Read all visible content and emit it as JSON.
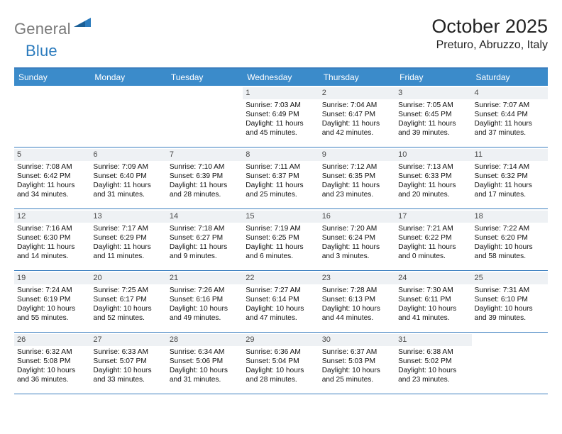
{
  "logo": {
    "part1": "General",
    "part2": "Blue"
  },
  "title": "October 2025",
  "location": "Preturo, Abruzzo, Italy",
  "colors": {
    "header_bg": "#3b8bca",
    "header_border": "#3b7fbf",
    "daynum_bg": "#eef1f4",
    "logo_gray": "#7a7a7a",
    "logo_blue": "#2b7bbd"
  },
  "daysOfWeek": [
    "Sunday",
    "Monday",
    "Tuesday",
    "Wednesday",
    "Thursday",
    "Friday",
    "Saturday"
  ],
  "weeks": [
    [
      {
        "n": "",
        "sunrise": "",
        "sunset": "",
        "daylight": ""
      },
      {
        "n": "",
        "sunrise": "",
        "sunset": "",
        "daylight": ""
      },
      {
        "n": "",
        "sunrise": "",
        "sunset": "",
        "daylight": ""
      },
      {
        "n": "1",
        "sunrise": "7:03 AM",
        "sunset": "6:49 PM",
        "daylight": "11 hours and 45 minutes."
      },
      {
        "n": "2",
        "sunrise": "7:04 AM",
        "sunset": "6:47 PM",
        "daylight": "11 hours and 42 minutes."
      },
      {
        "n": "3",
        "sunrise": "7:05 AM",
        "sunset": "6:45 PM",
        "daylight": "11 hours and 39 minutes."
      },
      {
        "n": "4",
        "sunrise": "7:07 AM",
        "sunset": "6:44 PM",
        "daylight": "11 hours and 37 minutes."
      }
    ],
    [
      {
        "n": "5",
        "sunrise": "7:08 AM",
        "sunset": "6:42 PM",
        "daylight": "11 hours and 34 minutes."
      },
      {
        "n": "6",
        "sunrise": "7:09 AM",
        "sunset": "6:40 PM",
        "daylight": "11 hours and 31 minutes."
      },
      {
        "n": "7",
        "sunrise": "7:10 AM",
        "sunset": "6:39 PM",
        "daylight": "11 hours and 28 minutes."
      },
      {
        "n": "8",
        "sunrise": "7:11 AM",
        "sunset": "6:37 PM",
        "daylight": "11 hours and 25 minutes."
      },
      {
        "n": "9",
        "sunrise": "7:12 AM",
        "sunset": "6:35 PM",
        "daylight": "11 hours and 23 minutes."
      },
      {
        "n": "10",
        "sunrise": "7:13 AM",
        "sunset": "6:33 PM",
        "daylight": "11 hours and 20 minutes."
      },
      {
        "n": "11",
        "sunrise": "7:14 AM",
        "sunset": "6:32 PM",
        "daylight": "11 hours and 17 minutes."
      }
    ],
    [
      {
        "n": "12",
        "sunrise": "7:16 AM",
        "sunset": "6:30 PM",
        "daylight": "11 hours and 14 minutes."
      },
      {
        "n": "13",
        "sunrise": "7:17 AM",
        "sunset": "6:29 PM",
        "daylight": "11 hours and 11 minutes."
      },
      {
        "n": "14",
        "sunrise": "7:18 AM",
        "sunset": "6:27 PM",
        "daylight": "11 hours and 9 minutes."
      },
      {
        "n": "15",
        "sunrise": "7:19 AM",
        "sunset": "6:25 PM",
        "daylight": "11 hours and 6 minutes."
      },
      {
        "n": "16",
        "sunrise": "7:20 AM",
        "sunset": "6:24 PM",
        "daylight": "11 hours and 3 minutes."
      },
      {
        "n": "17",
        "sunrise": "7:21 AM",
        "sunset": "6:22 PM",
        "daylight": "11 hours and 0 minutes."
      },
      {
        "n": "18",
        "sunrise": "7:22 AM",
        "sunset": "6:20 PM",
        "daylight": "10 hours and 58 minutes."
      }
    ],
    [
      {
        "n": "19",
        "sunrise": "7:24 AM",
        "sunset": "6:19 PM",
        "daylight": "10 hours and 55 minutes."
      },
      {
        "n": "20",
        "sunrise": "7:25 AM",
        "sunset": "6:17 PM",
        "daylight": "10 hours and 52 minutes."
      },
      {
        "n": "21",
        "sunrise": "7:26 AM",
        "sunset": "6:16 PM",
        "daylight": "10 hours and 49 minutes."
      },
      {
        "n": "22",
        "sunrise": "7:27 AM",
        "sunset": "6:14 PM",
        "daylight": "10 hours and 47 minutes."
      },
      {
        "n": "23",
        "sunrise": "7:28 AM",
        "sunset": "6:13 PM",
        "daylight": "10 hours and 44 minutes."
      },
      {
        "n": "24",
        "sunrise": "7:30 AM",
        "sunset": "6:11 PM",
        "daylight": "10 hours and 41 minutes."
      },
      {
        "n": "25",
        "sunrise": "7:31 AM",
        "sunset": "6:10 PM",
        "daylight": "10 hours and 39 minutes."
      }
    ],
    [
      {
        "n": "26",
        "sunrise": "6:32 AM",
        "sunset": "5:08 PM",
        "daylight": "10 hours and 36 minutes."
      },
      {
        "n": "27",
        "sunrise": "6:33 AM",
        "sunset": "5:07 PM",
        "daylight": "10 hours and 33 minutes."
      },
      {
        "n": "28",
        "sunrise": "6:34 AM",
        "sunset": "5:06 PM",
        "daylight": "10 hours and 31 minutes."
      },
      {
        "n": "29",
        "sunrise": "6:36 AM",
        "sunset": "5:04 PM",
        "daylight": "10 hours and 28 minutes."
      },
      {
        "n": "30",
        "sunrise": "6:37 AM",
        "sunset": "5:03 PM",
        "daylight": "10 hours and 25 minutes."
      },
      {
        "n": "31",
        "sunrise": "6:38 AM",
        "sunset": "5:02 PM",
        "daylight": "10 hours and 23 minutes."
      },
      {
        "n": "",
        "sunrise": "",
        "sunset": "",
        "daylight": ""
      }
    ]
  ],
  "labels": {
    "sunrise": "Sunrise:",
    "sunset": "Sunset:",
    "daylight": "Daylight:"
  }
}
